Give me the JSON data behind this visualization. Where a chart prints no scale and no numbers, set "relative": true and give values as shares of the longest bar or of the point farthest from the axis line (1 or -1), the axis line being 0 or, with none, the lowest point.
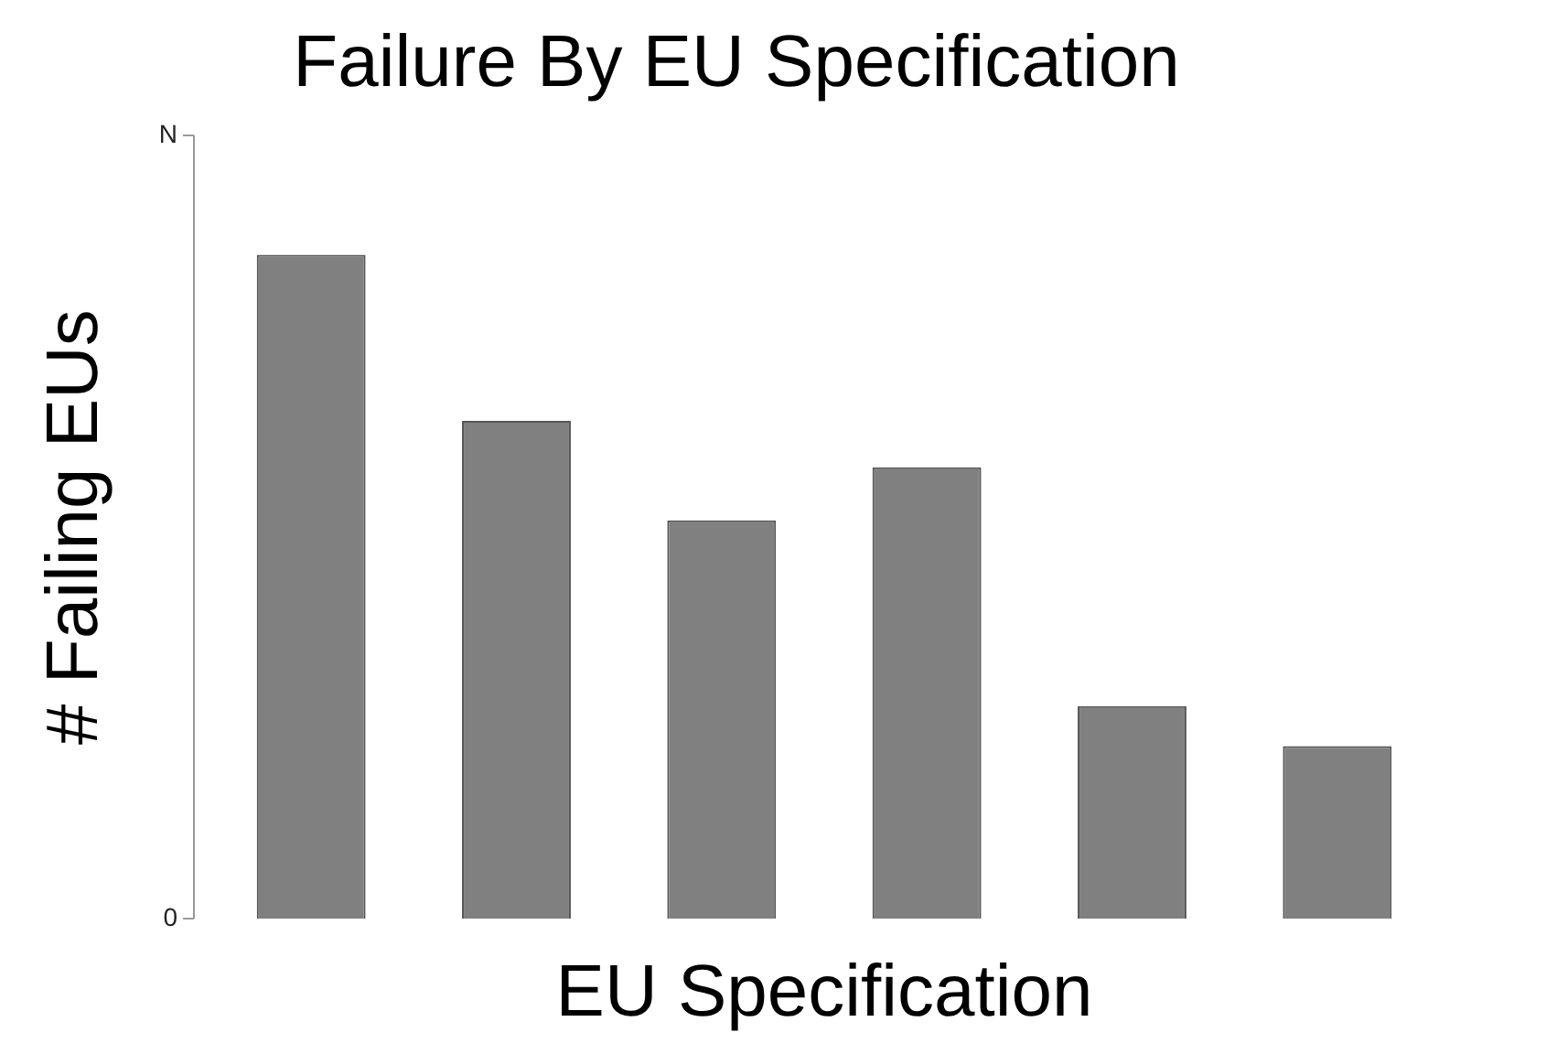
{
  "chart_data": {
    "type": "bar",
    "title": "Failure By EU Specification",
    "xlabel": "EU Specification",
    "ylabel": "# Failing EUs",
    "categories": [
      null,
      null,
      null,
      null,
      null,
      null
    ],
    "values": [
      1,
      0.75,
      0.6,
      0.68,
      0.32,
      0.26
    ],
    "color": "#808080",
    "relative": true,
    "annotations": [
      "N",
      "0"
    ],
    "grid": false,
    "legend": false
  }
}
